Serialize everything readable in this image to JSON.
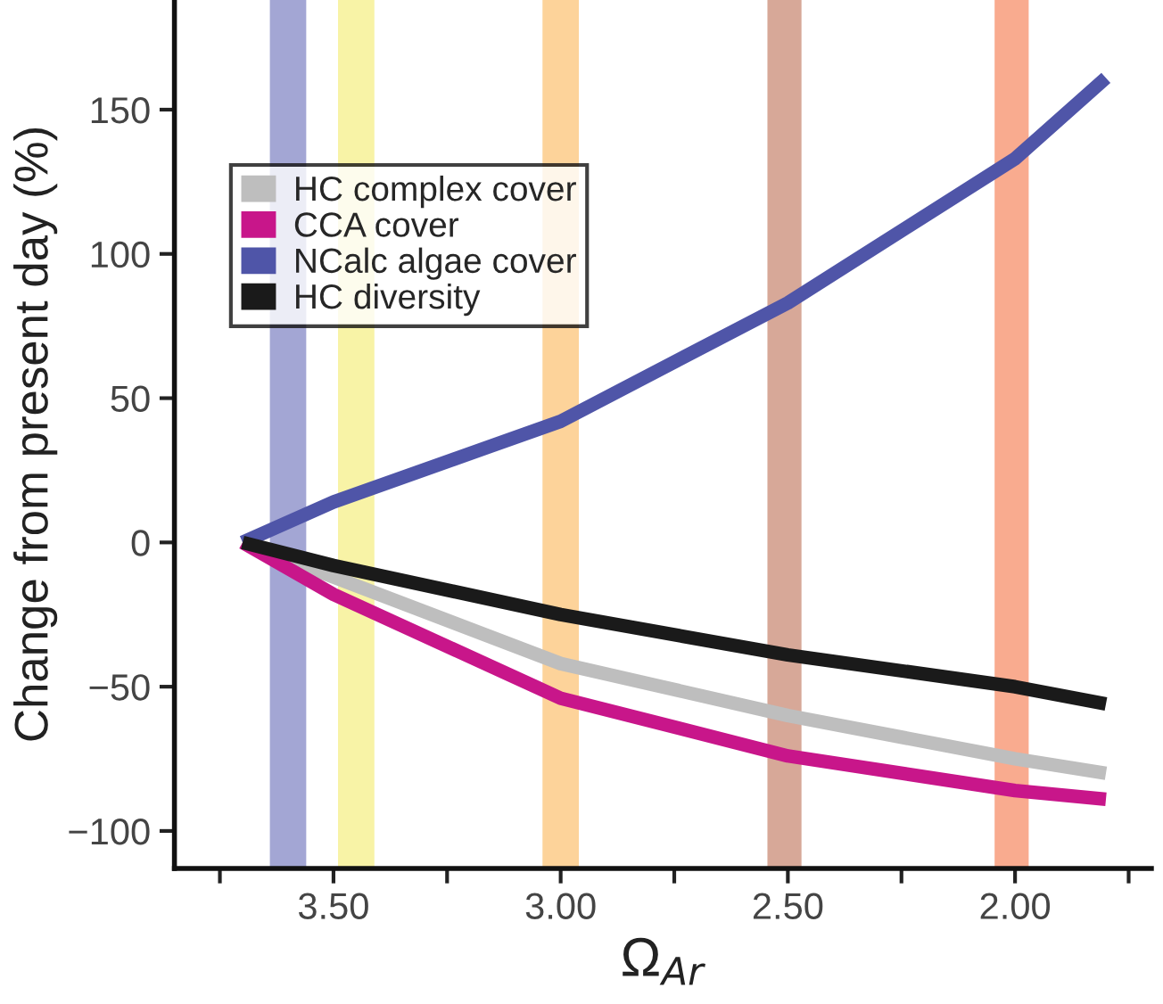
{
  "chart_data": {
    "type": "line",
    "xlabel": "Ω$_{Ar}$",
    "ylabel": "Change from present day (%)",
    "x": [
      3.7,
      3.5,
      3.0,
      2.5,
      2.0,
      1.8
    ],
    "series": [
      {
        "name": "HC complex cover",
        "color": "#bebebe",
        "values": [
          0,
          -12,
          -42,
          -60,
          -75,
          -80
        ]
      },
      {
        "name": "CCA cover",
        "color": "#c8168a",
        "values": [
          0,
          -18,
          -54,
          -74,
          -86,
          -89
        ]
      },
      {
        "name": "NCalc algae cover",
        "color": "#4f55a8",
        "values": [
          0,
          14,
          42,
          83,
          133,
          161
        ]
      },
      {
        "name": "HC diversity",
        "color": "#1a1a1a",
        "values": [
          0,
          -8,
          -25,
          -39,
          -50,
          -56
        ]
      }
    ],
    "xlim": [
      3.85,
      1.7
    ],
    "ylim": [
      -113,
      188
    ],
    "xticks": [
      {
        "value": 3.75,
        "label": null
      },
      {
        "value": 3.5,
        "label": "3.50"
      },
      {
        "value": 3.25,
        "label": null
      },
      {
        "value": 3.0,
        "label": "3.00"
      },
      {
        "value": 2.75,
        "label": null
      },
      {
        "value": 2.5,
        "label": "2.50"
      },
      {
        "value": 2.25,
        "label": null
      },
      {
        "value": 2.0,
        "label": "2.00"
      },
      {
        "value": 1.75,
        "label": null
      }
    ],
    "yticks": [
      {
        "value": -100,
        "label": "−100"
      },
      {
        "value": -50,
        "label": "−50"
      },
      0,
      50,
      100,
      150
    ],
    "bands": [
      {
        "axis": "x",
        "from": 3.64,
        "to": 3.56,
        "color": "#a3a6d4"
      },
      {
        "axis": "x",
        "from": 3.49,
        "to": 3.41,
        "color": "#f8f3a6"
      },
      {
        "axis": "x",
        "from": 3.04,
        "to": 2.96,
        "color": "#fdd39a"
      },
      {
        "axis": "x",
        "from": 2.545,
        "to": 2.47,
        "color": "#d7a898"
      },
      {
        "axis": "x",
        "from": 2.045,
        "to": 1.97,
        "color": "#f9ab8f"
      }
    ],
    "grid": false,
    "legend": "top left",
    "marker": "none",
    "line_style": "solid"
  }
}
